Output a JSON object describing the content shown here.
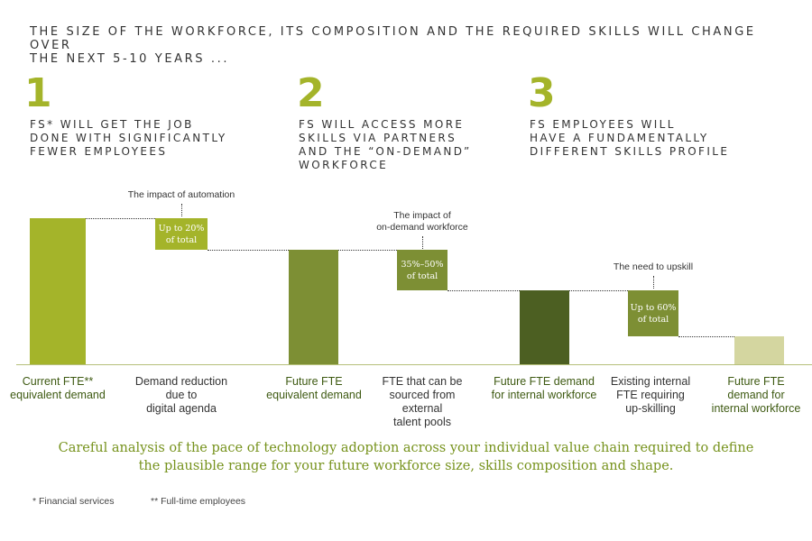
{
  "header": {
    "title_line1": "THE SIZE OF THE WORKFORCE, ITS COMPOSITION AND THE REQUIRED SKILLS WILL CHANGE OVER",
    "title_line2": "THE NEXT 5-10 YEARS ..."
  },
  "pillars": [
    {
      "number": "1",
      "lines": [
        "FS* WILL GET THE JOB",
        "DONE WITH SIGNIFICANTLY",
        "FEWER EMPLOYEES"
      ]
    },
    {
      "number": "2",
      "lines": [
        "FS WILL ACCESS MORE",
        "SKILLS VIA PARTNERS",
        "AND THE “ON-DEMAND”",
        "WORKFORCE"
      ]
    },
    {
      "number": "3",
      "lines": [
        "FS EMPLOYEES WILL",
        "HAVE A FUNDAMENTALLY",
        "DIFFERENT SKILLS PROFILE"
      ]
    }
  ],
  "annotations": {
    "automation": [
      "The impact of automation"
    ],
    "on_demand": [
      "The impact of",
      "on-demand workforce"
    ],
    "upskill": [
      "The need to upskill"
    ]
  },
  "boxes": {
    "automation": [
      "Up to 20%",
      "of total"
    ],
    "on_demand": [
      "35%–50%",
      "of total"
    ],
    "upskill": [
      "Up to 60%",
      "of total"
    ]
  },
  "categories": [
    {
      "lines": [
        "Current FTE**",
        "equivalent demand"
      ]
    },
    {
      "lines": [
        "Demand reduction",
        "due to",
        "digital agenda"
      ]
    },
    {
      "lines": [
        "Future FTE",
        "equivalent demand"
      ]
    },
    {
      "lines": [
        "FTE that can be",
        "sourced from",
        "external",
        "talent pools"
      ]
    },
    {
      "lines": [
        "Future FTE demand",
        "for internal workforce"
      ]
    },
    {
      "lines": [
        "Existing internal",
        "FTE requiring",
        "up-skilling"
      ]
    },
    {
      "lines": [
        "Future FTE",
        "demand for",
        "internal workforce"
      ]
    }
  ],
  "conclusion": {
    "line1": "Careful analysis of the pace of technology adoption across your individual value chain required to define",
    "line2": "the plausible range for your future workforce size, skills composition and shape."
  },
  "footnotes": {
    "fs": "* Financial services",
    "fte": "** Full-time employees"
  },
  "colors": {
    "lime": "#a4b42a",
    "olive": "#7d8f34",
    "dark_green": "#4c5f22",
    "pale": "#d4d6a0",
    "green_text": "#3e5a12",
    "conclusion": "#76921c"
  }
}
